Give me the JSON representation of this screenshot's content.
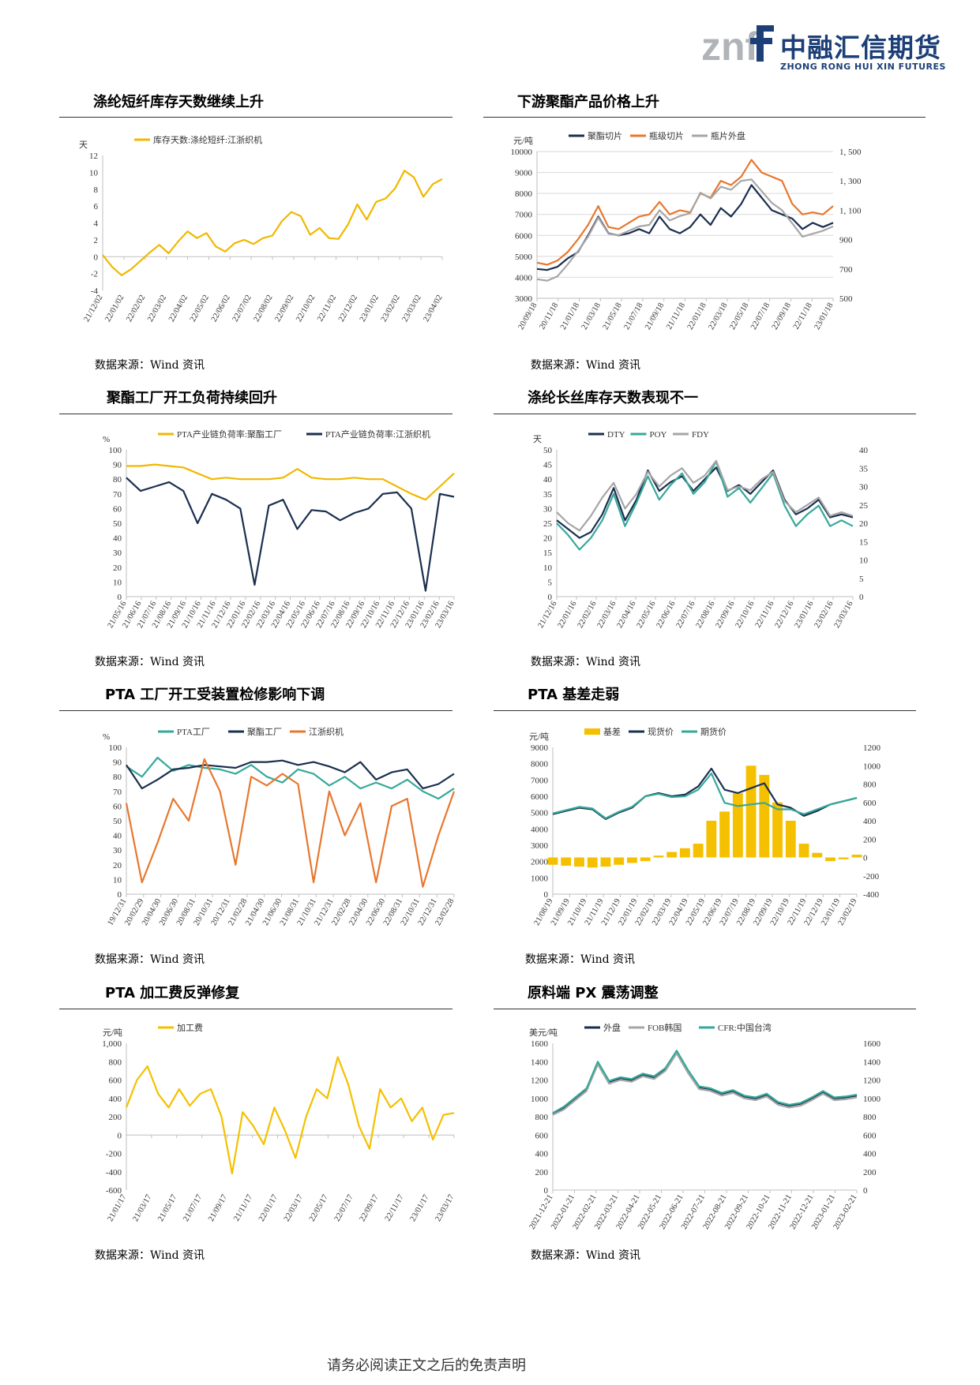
{
  "header": {
    "logo_mark": "znf",
    "logo_cn": "中融汇信期货",
    "logo_en": "ZHONG RONG HUI XIN FUTURES",
    "brand_color": "#1c3f77"
  },
  "footer": {
    "text": "请务必阅读正文之后的免责声明"
  },
  "panels": [
    {
      "title": "涤纶短纤库存天数继续上升",
      "source": "数据来源：Wind 资讯"
    },
    {
      "title": "下游聚酯产品价格上升",
      "source": "数据来源：Wind 资讯"
    },
    {
      "title": "聚酯工厂开工负荷持续回升",
      "source": "数据来源：Wind 资讯"
    },
    {
      "title": "涤纶长丝库存天数表现不一",
      "source": "数据来源：Wind 资讯"
    },
    {
      "title": "PTA 工厂开工受装置检修影响下调",
      "source": "数据来源：Wind 资讯"
    },
    {
      "title": "PTA 基差走弱",
      "source": "数据来源：Wind 资讯"
    },
    {
      "title": "PTA 加工费反弹修复",
      "source": "数据来源：Wind 资讯"
    },
    {
      "title": "原料端 PX 震荡调整",
      "source": "数据来源：Wind 资讯"
    }
  ],
  "chart_data": [
    {
      "type": "line",
      "unit": "天",
      "ylim": [
        -4,
        12
      ],
      "yticks": [
        -4,
        -2,
        0,
        2,
        4,
        6,
        8,
        10,
        12
      ],
      "xticks": [
        "21/12/02",
        "22/01/02",
        "22/02/02",
        "22/03/02",
        "22/04/02",
        "22/05/02",
        "22/06/02",
        "22/07/02",
        "22/08/02",
        "22/09/02",
        "22/10/02",
        "22/11/02",
        "22/12/02",
        "23/01/02",
        "23/02/02",
        "23/03/02",
        "23/04/02"
      ],
      "grid": false,
      "legend": "top",
      "series": [
        {
          "name": "库存天数:涤纶短纤:江浙织机",
          "color": "#f0b800",
          "values": [
            0.2,
            -1.2,
            -2.2,
            -1.5,
            -0.5,
            0.5,
            1.4,
            0.4,
            1.8,
            3.0,
            2.2,
            2.8,
            1.2,
            0.6,
            1.6,
            2.0,
            1.5,
            2.2,
            2.5,
            4.2,
            5.3,
            4.8,
            2.6,
            3.4,
            2.2,
            2.1,
            3.8,
            6.2,
            4.4,
            6.5,
            6.9,
            8.1,
            10.2,
            9.4,
            7.1,
            8.6,
            9.2
          ]
        }
      ]
    },
    {
      "type": "line",
      "unit": "元/吨",
      "ylim": [
        3000,
        10000
      ],
      "yticks": [
        3000,
        4000,
        5000,
        6000,
        7000,
        8000,
        9000,
        10000
      ],
      "ylim_right": [
        500,
        1500
      ],
      "yticks_right": [
        "500",
        "700",
        "900",
        "1, 100",
        "1, 300",
        "1, 500"
      ],
      "xticks": [
        "20/09/18",
        "20/11/18",
        "21/01/18",
        "21/03/18",
        "21/05/18",
        "21/07/18",
        "21/09/18",
        "21/11/18",
        "22/01/18",
        "22/03/18",
        "22/05/18",
        "22/07/18",
        "22/09/18",
        "22/11/18",
        "23/01/18"
      ],
      "grid": true,
      "legend": "top",
      "series": [
        {
          "name": "聚酯切片",
          "color": "#1a2f4f",
          "axis": "left",
          "values": [
            4400,
            4350,
            4500,
            4900,
            5200,
            6000,
            6900,
            6100,
            6000,
            6100,
            6300,
            6100,
            6900,
            6300,
            6100,
            6400,
            7000,
            6500,
            7300,
            6900,
            7500,
            8400,
            7800,
            7200,
            7000,
            6800,
            6300,
            6600,
            6400,
            6600
          ]
        },
        {
          "name": "瓶级切片",
          "color": "#e8772e",
          "axis": "left",
          "values": [
            4700,
            4600,
            4800,
            5200,
            5800,
            6500,
            7400,
            6400,
            6300,
            6600,
            6900,
            7000,
            7600,
            7000,
            7200,
            7100,
            8000,
            7800,
            8600,
            8400,
            8800,
            9600,
            9000,
            8800,
            8600,
            7500,
            7000,
            7100,
            7000,
            7400
          ]
        },
        {
          "name": "瓶片外盘",
          "color": "#a6a6a6",
          "axis": "right",
          "values": [
            630,
            620,
            650,
            730,
            820,
            920,
            1050,
            940,
            930,
            960,
            990,
            1000,
            1100,
            1030,
            1060,
            1080,
            1220,
            1180,
            1260,
            1240,
            1300,
            1310,
            1230,
            1150,
            1100,
            1010,
            920,
            940,
            960,
            990
          ]
        }
      ]
    },
    {
      "type": "line",
      "unit": "%",
      "ylim": [
        0,
        100
      ],
      "yticks": [
        0,
        10,
        20,
        30,
        40,
        50,
        60,
        70,
        80,
        90,
        100
      ],
      "xticks": [
        "21/05/16",
        "21/06/16",
        "21/07/16",
        "21/08/16",
        "21/09/16",
        "21/10/16",
        "21/11/16",
        "21/12/16",
        "22/01/16",
        "22/02/16",
        "22/03/16",
        "22/04/16",
        "22/05/16",
        "22/06/16",
        "22/07/16",
        "22/08/16",
        "22/09/16",
        "22/10/16",
        "22/11/16",
        "22/12/16",
        "23/01/16",
        "23/02/16",
        "23/03/16"
      ],
      "grid": false,
      "legend": "top",
      "series": [
        {
          "name": "PTA产业链负荷率:聚酯工厂",
          "color": "#f0b800",
          "values": [
            89,
            89,
            90,
            89,
            88,
            84,
            80,
            81,
            80,
            80,
            80,
            81,
            87,
            81,
            80,
            80,
            81,
            80,
            80,
            75,
            70,
            66,
            75,
            84
          ]
        },
        {
          "name": "PTA产业链负荷率:江浙织机",
          "color": "#1a2f4f",
          "values": [
            81,
            72,
            75,
            78,
            72,
            50,
            70,
            66,
            60,
            8,
            62,
            66,
            46,
            59,
            58,
            52,
            57,
            60,
            70,
            71,
            60,
            4,
            70,
            68
          ]
        }
      ]
    },
    {
      "type": "line",
      "unit": "天",
      "ylim": [
        0,
        50
      ],
      "yticks": [
        0,
        5,
        10,
        15,
        20,
        25,
        30,
        35,
        40,
        45,
        50
      ],
      "ylim_right": [
        0,
        40
      ],
      "yticks_right": [
        0,
        5,
        10,
        15,
        20,
        25,
        30,
        35,
        40
      ],
      "xticks": [
        "21/12/16",
        "22/01/16",
        "22/02/16",
        "22/03/16",
        "22/04/16",
        "22/05/16",
        "22/06/16",
        "22/07/16",
        "22/08/16",
        "22/09/16",
        "22/10/16",
        "22/11/16",
        "22/12/16",
        "23/01/16",
        "23/02/16",
        "23/03/16"
      ],
      "grid": false,
      "legend": "top",
      "series": [
        {
          "name": "DTY",
          "color": "#1a2f4f",
          "axis": "left",
          "values": [
            26,
            23,
            20,
            22,
            28,
            37,
            26,
            33,
            43,
            36,
            39,
            41,
            36,
            40,
            44,
            36,
            38,
            35,
            39,
            43,
            33,
            28,
            30,
            33,
            27,
            28,
            27
          ]
        },
        {
          "name": "POY",
          "color": "#36a89a",
          "axis": "left",
          "values": [
            25,
            21,
            16,
            20,
            26,
            35,
            24,
            32,
            41,
            33,
            38,
            42,
            35,
            39,
            46,
            34,
            37,
            32,
            37,
            42,
            31,
            24,
            28,
            31,
            24,
            26,
            24
          ]
        },
        {
          "name": "FDY",
          "color": "#a6a6a6",
          "axis": "right",
          "values": [
            23,
            20,
            18,
            22,
            27,
            31,
            24,
            28,
            34,
            30,
            33,
            35,
            31,
            33,
            37,
            29,
            30,
            29,
            32,
            34,
            26,
            23,
            25,
            27,
            22,
            23,
            22
          ]
        }
      ]
    },
    {
      "type": "line",
      "unit": "%",
      "ylim": [
        0,
        100
      ],
      "yticks": [
        0,
        10,
        20,
        30,
        40,
        50,
        60,
        70,
        80,
        90,
        100
      ],
      "xticks": [
        "19/12/31",
        "20/02/29",
        "20/04/30",
        "20/06/30",
        "20/08/31",
        "20/10/31",
        "20/12/31",
        "21/02/28",
        "21/04/30",
        "21/06/30",
        "21/08/31",
        "21/10/31",
        "21/12/31",
        "22/02/28",
        "22/04/30",
        "22/06/30",
        "22/08/31",
        "22/10/31",
        "22/12/31",
        "23/02/28"
      ],
      "grid": false,
      "legend": "top",
      "series": [
        {
          "name": "PTA工厂",
          "color": "#36a89a",
          "values": [
            87,
            80,
            93,
            84,
            88,
            86,
            85,
            82,
            88,
            80,
            76,
            85,
            82,
            74,
            80,
            72,
            76,
            72,
            78,
            70,
            65,
            72
          ]
        },
        {
          "name": "聚酯工厂",
          "color": "#1a2f4f",
          "values": [
            88,
            72,
            78,
            85,
            86,
            88,
            87,
            86,
            90,
            90,
            91,
            88,
            90,
            87,
            83,
            90,
            78,
            83,
            85,
            72,
            75,
            82
          ]
        },
        {
          "name": "江浙织机",
          "color": "#e8772e",
          "values": [
            62,
            8,
            35,
            65,
            50,
            92,
            70,
            20,
            80,
            74,
            82,
            75,
            8,
            70,
            40,
            62,
            8,
            60,
            65,
            5,
            40,
            70
          ]
        }
      ]
    },
    {
      "type": "line",
      "unit": "元/吨",
      "ylim": [
        0,
        9000
      ],
      "yticks": [
        0,
        1000,
        2000,
        3000,
        4000,
        5000,
        6000,
        7000,
        8000,
        9000
      ],
      "ylim_right": [
        -400,
        1200
      ],
      "yticks_right": [
        -400,
        -200,
        0,
        200,
        400,
        600,
        800,
        1000,
        1200
      ],
      "xticks": [
        "21/08/19",
        "21/09/19",
        "21/10/19",
        "21/11/19",
        "21/12/19",
        "22/01/19",
        "22/02/19",
        "22/03/19",
        "22/04/19",
        "22/05/19",
        "22/06/19",
        "22/07/19",
        "22/08/19",
        "22/09/19",
        "22/10/19",
        "22/11/19",
        "22/12/19",
        "23/01/19",
        "23/02/19"
      ],
      "grid": false,
      "legend": "top",
      "series": [
        {
          "name": "基差",
          "color": "#f5c000",
          "axis": "right",
          "style": "bar",
          "values": [
            -80,
            -90,
            -100,
            -110,
            -100,
            -80,
            -60,
            -40,
            20,
            60,
            100,
            150,
            400,
            500,
            700,
            1000,
            900,
            600,
            400,
            150,
            50,
            -40,
            -20,
            30
          ]
        },
        {
          "name": "现货价",
          "color": "#1a2f4f",
          "axis": "left",
          "values": [
            4900,
            5100,
            5300,
            5200,
            4600,
            5000,
            5300,
            6000,
            6200,
            6000,
            6100,
            6600,
            7700,
            6400,
            6200,
            6500,
            6800,
            5500,
            5300,
            4800,
            5100,
            5500,
            5700,
            5900
          ]
        },
        {
          "name": "期货价",
          "color": "#36a89a",
          "axis": "left",
          "values": [
            4950,
            5150,
            5350,
            5250,
            4650,
            5050,
            5350,
            6000,
            6150,
            5950,
            6000,
            6400,
            7400,
            5600,
            5400,
            5500,
            5600,
            5200,
            5200,
            4900,
            5200,
            5500,
            5700,
            5900
          ]
        }
      ]
    },
    {
      "type": "line",
      "unit": "元/吨",
      "ylim": [
        -600,
        1000
      ],
      "yticks": [
        "-600",
        "-400",
        "-200",
        "0",
        "200",
        "400",
        "600",
        "800",
        "1,000"
      ],
      "xticks": [
        "21/01/17",
        "21/03/17",
        "21/05/17",
        "21/07/17",
        "21/09/17",
        "21/11/17",
        "22/01/17",
        "22/03/17",
        "22/05/17",
        "22/07/17",
        "22/09/17",
        "22/11/17",
        "23/01/17",
        "23/03/17"
      ],
      "grid": false,
      "legend": "top",
      "series": [
        {
          "name": "加工费",
          "color": "#f5c000",
          "values": [
            300,
            600,
            750,
            450,
            300,
            500,
            320,
            450,
            500,
            200,
            -420,
            250,
            100,
            -100,
            300,
            50,
            -250,
            200,
            500,
            400,
            850,
            550,
            100,
            -150,
            500,
            300,
            400,
            150,
            300,
            -50,
            220,
            240
          ]
        }
      ]
    },
    {
      "type": "line",
      "unit": "美元/吨",
      "ylim": [
        0,
        1600
      ],
      "yticks": [
        0,
        200,
        400,
        600,
        800,
        1000,
        1200,
        1400,
        1600
      ],
      "ylim_right": [
        0,
        1600
      ],
      "yticks_right": [
        0,
        200,
        400,
        600,
        800,
        1000,
        1200,
        1400,
        1600
      ],
      "xticks": [
        "2021-12-21",
        "2022-01-21",
        "2022-02-21",
        "2022-03-21",
        "2022-04-21",
        "2022-05-21",
        "2022-06-21",
        "2022-07-21",
        "2022-08-21",
        "2022-09-21",
        "2022-10-21",
        "2022-11-21",
        "2022-12-21",
        "2023-01-21",
        "2023-02-21"
      ],
      "grid": false,
      "legend": "top",
      "series": [
        {
          "name": "外盘",
          "color": "#1a2f4f",
          "axis": "left",
          "values": [
            830,
            900,
            1000,
            1100,
            1390,
            1180,
            1220,
            1200,
            1260,
            1230,
            1320,
            1510,
            1300,
            1120,
            1100,
            1050,
            1080,
            1020,
            1000,
            1040,
            950,
            920,
            940,
            1000,
            1070,
            1000,
            1010,
            1030
          ]
        },
        {
          "name": "FOB韩国",
          "color": "#a6a6a6",
          "axis": "left",
          "values": [
            820,
            880,
            980,
            1080,
            1370,
            1160,
            1200,
            1180,
            1240,
            1210,
            1300,
            1490,
            1280,
            1100,
            1080,
            1030,
            1060,
            1000,
            980,
            1020,
            930,
            900,
            920,
            980,
            1050,
            980,
            990,
            1010
          ]
        },
        {
          "name": "CFR:中国台湾",
          "color": "#36a89a",
          "axis": "right",
          "values": [
            840,
            910,
            1010,
            1110,
            1400,
            1190,
            1230,
            1210,
            1270,
            1240,
            1330,
            1520,
            1310,
            1130,
            1110,
            1060,
            1090,
            1030,
            1010,
            1050,
            960,
            930,
            950,
            1010,
            1080,
            1010,
            1020,
            1040
          ]
        }
      ]
    }
  ]
}
